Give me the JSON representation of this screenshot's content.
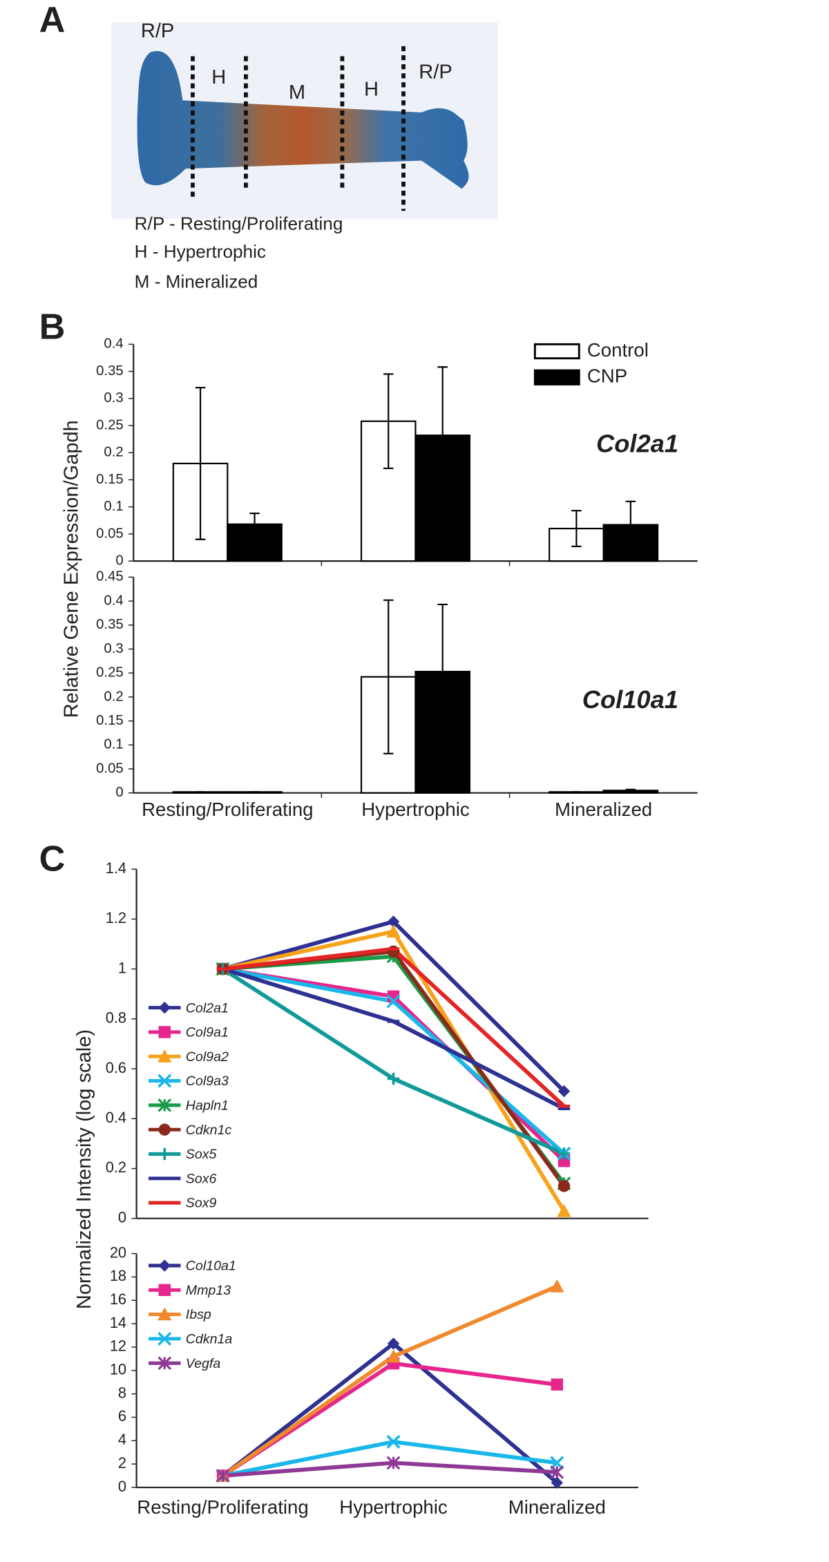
{
  "panels": {
    "labels": [
      "A",
      "B",
      "C"
    ]
  },
  "bone_image": {
    "zones": [
      "R/P",
      "H",
      "M",
      "H",
      "R/P"
    ],
    "key": [
      "R/P - Resting/Proliferating",
      "H - Hypertrophic",
      "M - Mineralized"
    ]
  },
  "chart_data": [
    {
      "type": "bar",
      "annotation": "Col2a1",
      "ylabel": "Relative Gene Expression/Gapdh",
      "categories": [
        null,
        null,
        null
      ],
      "series": [
        {
          "name": "Control",
          "color": "#ffffff",
          "values": [
            0.18,
            0.258,
            0.06
          ],
          "errors": [
            0.14,
            0.087,
            0.033
          ]
        },
        {
          "name": "CNP",
          "color": "#000000",
          "values": [
            0.068,
            0.232,
            0.067
          ],
          "errors": [
            0.02,
            0.126,
            0.043
          ]
        }
      ],
      "ylim": [
        0,
        0.4
      ],
      "yticks": [
        0,
        0.05,
        0.1,
        0.15,
        0.2,
        0.25,
        0.3,
        0.35,
        0.4
      ]
    },
    {
      "type": "bar",
      "annotation": "Col10a1",
      "categories": [
        "Resting/Proliferating",
        "Hypertrophic",
        "Mineralized"
      ],
      "series": [
        {
          "color": "#ffffff",
          "values": [
            0.002,
            0.242,
            0.002
          ],
          "errors": [
            0,
            0.16,
            0
          ]
        },
        {
          "color": "#000000",
          "values": [
            0.002,
            0.253,
            0.005
          ],
          "errors": [
            0,
            0.14,
            0.002
          ]
        }
      ],
      "ylim": [
        0,
        0.45
      ],
      "yticks": [
        0,
        0.05,
        0.1,
        0.15,
        0.2,
        0.25,
        0.3,
        0.35,
        0.4,
        0.45
      ]
    },
    {
      "type": "line",
      "ylabel": "Normalized Intensity (log scale)",
      "categories": [
        null,
        null,
        null
      ],
      "series": [
        {
          "name": "Col2a1",
          "color": "#2e3192",
          "marker": "diamond",
          "values": [
            1,
            1.19,
            0.51
          ]
        },
        {
          "name": "Col9a1",
          "color": "#e6268c",
          "marker": "square",
          "values": [
            1,
            0.89,
            0.23
          ]
        },
        {
          "name": "Col9a2",
          "color": "#f6a21b",
          "marker": "triangle",
          "values": [
            1,
            1.15,
            0.03
          ]
        },
        {
          "name": "Col9a3",
          "color": "#1ab7ea",
          "marker": "x",
          "values": [
            1,
            0.87,
            0.26
          ]
        },
        {
          "name": "Hapln1",
          "color": "#1a9b48",
          "marker": "asterisk",
          "values": [
            1,
            1.05,
            0.14
          ]
        },
        {
          "name": "Cdkn1c",
          "color": "#8b2a1a",
          "marker": "circle",
          "values": [
            1,
            1.07,
            0.13
          ]
        },
        {
          "name": "Sox5",
          "color": "#109a9a",
          "marker": "plus",
          "values": [
            1,
            0.56,
            0.26
          ]
        },
        {
          "name": "Sox6",
          "color": "#2e3192",
          "marker": "dash",
          "values": [
            1,
            0.79,
            0.44
          ]
        },
        {
          "name": "Sox9",
          "color": "#e42526",
          "marker": "dash",
          "values": [
            1,
            1.08,
            0.45
          ]
        }
      ],
      "ylim": [
        0,
        1.4
      ],
      "yticks": [
        0,
        0.2,
        0.4,
        0.6,
        0.8,
        1,
        1.2,
        1.4
      ]
    },
    {
      "type": "line",
      "categories": [
        "Resting/Proliferating",
        "Hypertrophic",
        "Mineralized"
      ],
      "series": [
        {
          "name": "Col10a1",
          "color": "#2e3192",
          "marker": "diamond",
          "values": [
            1,
            12.3,
            0.4
          ]
        },
        {
          "name": "Mmp13",
          "color": "#e6268c",
          "marker": "square",
          "values": [
            1,
            10.6,
            8.8
          ]
        },
        {
          "name": "Ibsp",
          "color": "#f08a2c",
          "marker": "triangle",
          "values": [
            1,
            11.2,
            17.2
          ]
        },
        {
          "name": "Cdkn1a",
          "color": "#1ab7ea",
          "marker": "x",
          "values": [
            1,
            3.9,
            2.1
          ]
        },
        {
          "name": "Vegfa",
          "color": "#8e3a95",
          "marker": "asterisk",
          "values": [
            1,
            2.1,
            1.3
          ]
        }
      ],
      "ylim": [
        0,
        20
      ],
      "yticks": [
        0,
        2,
        4,
        6,
        8,
        10,
        12,
        14,
        16,
        18,
        20
      ]
    }
  ]
}
